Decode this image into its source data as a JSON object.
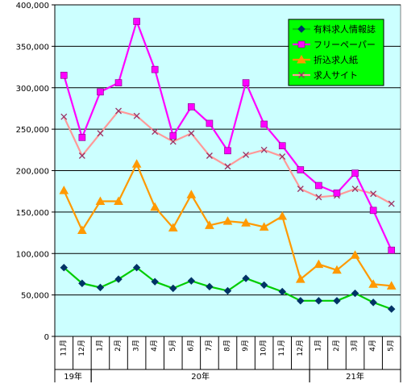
{
  "chart_data": {
    "type": "line",
    "title": "",
    "xlabel": "",
    "ylabel": "",
    "ylim": [
      0,
      400000
    ],
    "ytick_step": 50000,
    "yticks": [
      "0",
      "50,000",
      "100,000",
      "150,000",
      "200,000",
      "250,000",
      "300,000",
      "350,000",
      "400,000"
    ],
    "grid": true,
    "plot_background": "#ccffff",
    "legend_position": "top-right",
    "legend_background": "#00ff00",
    "categories": [
      "11月",
      "12月",
      "1月",
      "2月",
      "3月",
      "4月",
      "5月",
      "6月",
      "7月",
      "8月",
      "9月",
      "10月",
      "11月",
      "12月",
      "1月",
      "2月",
      "3月",
      "4月",
      "5月"
    ],
    "year_groups": [
      {
        "label": "19年",
        "start": 0,
        "end": 1
      },
      {
        "label": "20年",
        "start": 2,
        "end": 13
      },
      {
        "label": "21年",
        "start": 14,
        "end": 18
      }
    ],
    "series": [
      {
        "name": "有料求人情報誌",
        "color": "#00cc00",
        "marker": "diamond",
        "marker_color": "#003366",
        "values": [
          83000,
          64000,
          59000,
          69000,
          83000,
          66000,
          58000,
          67000,
          60000,
          55000,
          70000,
          62000,
          54000,
          43000,
          43000,
          43000,
          52000,
          41000,
          33000
        ]
      },
      {
        "name": "フリーペーパー",
        "color": "#ff00ff",
        "marker": "square",
        "marker_color": "#ff00ff",
        "values": [
          315000,
          240000,
          295000,
          306000,
          380000,
          322000,
          242000,
          277000,
          257000,
          224000,
          306000,
          256000,
          230000,
          201000,
          182000,
          173000,
          197000,
          152000,
          104000
        ]
      },
      {
        "name": "折込求人紙",
        "color": "#ff9900",
        "marker": "triangle",
        "marker_color": "#ff9900",
        "values": [
          176000,
          128000,
          163000,
          163000,
          208000,
          156000,
          131000,
          171000,
          134000,
          139000,
          137000,
          132000,
          145000,
          69000,
          87000,
          80000,
          98000,
          63000,
          61000
        ]
      },
      {
        "name": "求人サイト",
        "color": "#ff9999",
        "marker": "x",
        "marker_color": "#993366",
        "values": [
          265000,
          218000,
          245000,
          272000,
          266000,
          247000,
          235000,
          245000,
          218000,
          205000,
          219000,
          225000,
          217000,
          178000,
          168000,
          170000,
          178000,
          172000,
          160000
        ]
      }
    ]
  }
}
